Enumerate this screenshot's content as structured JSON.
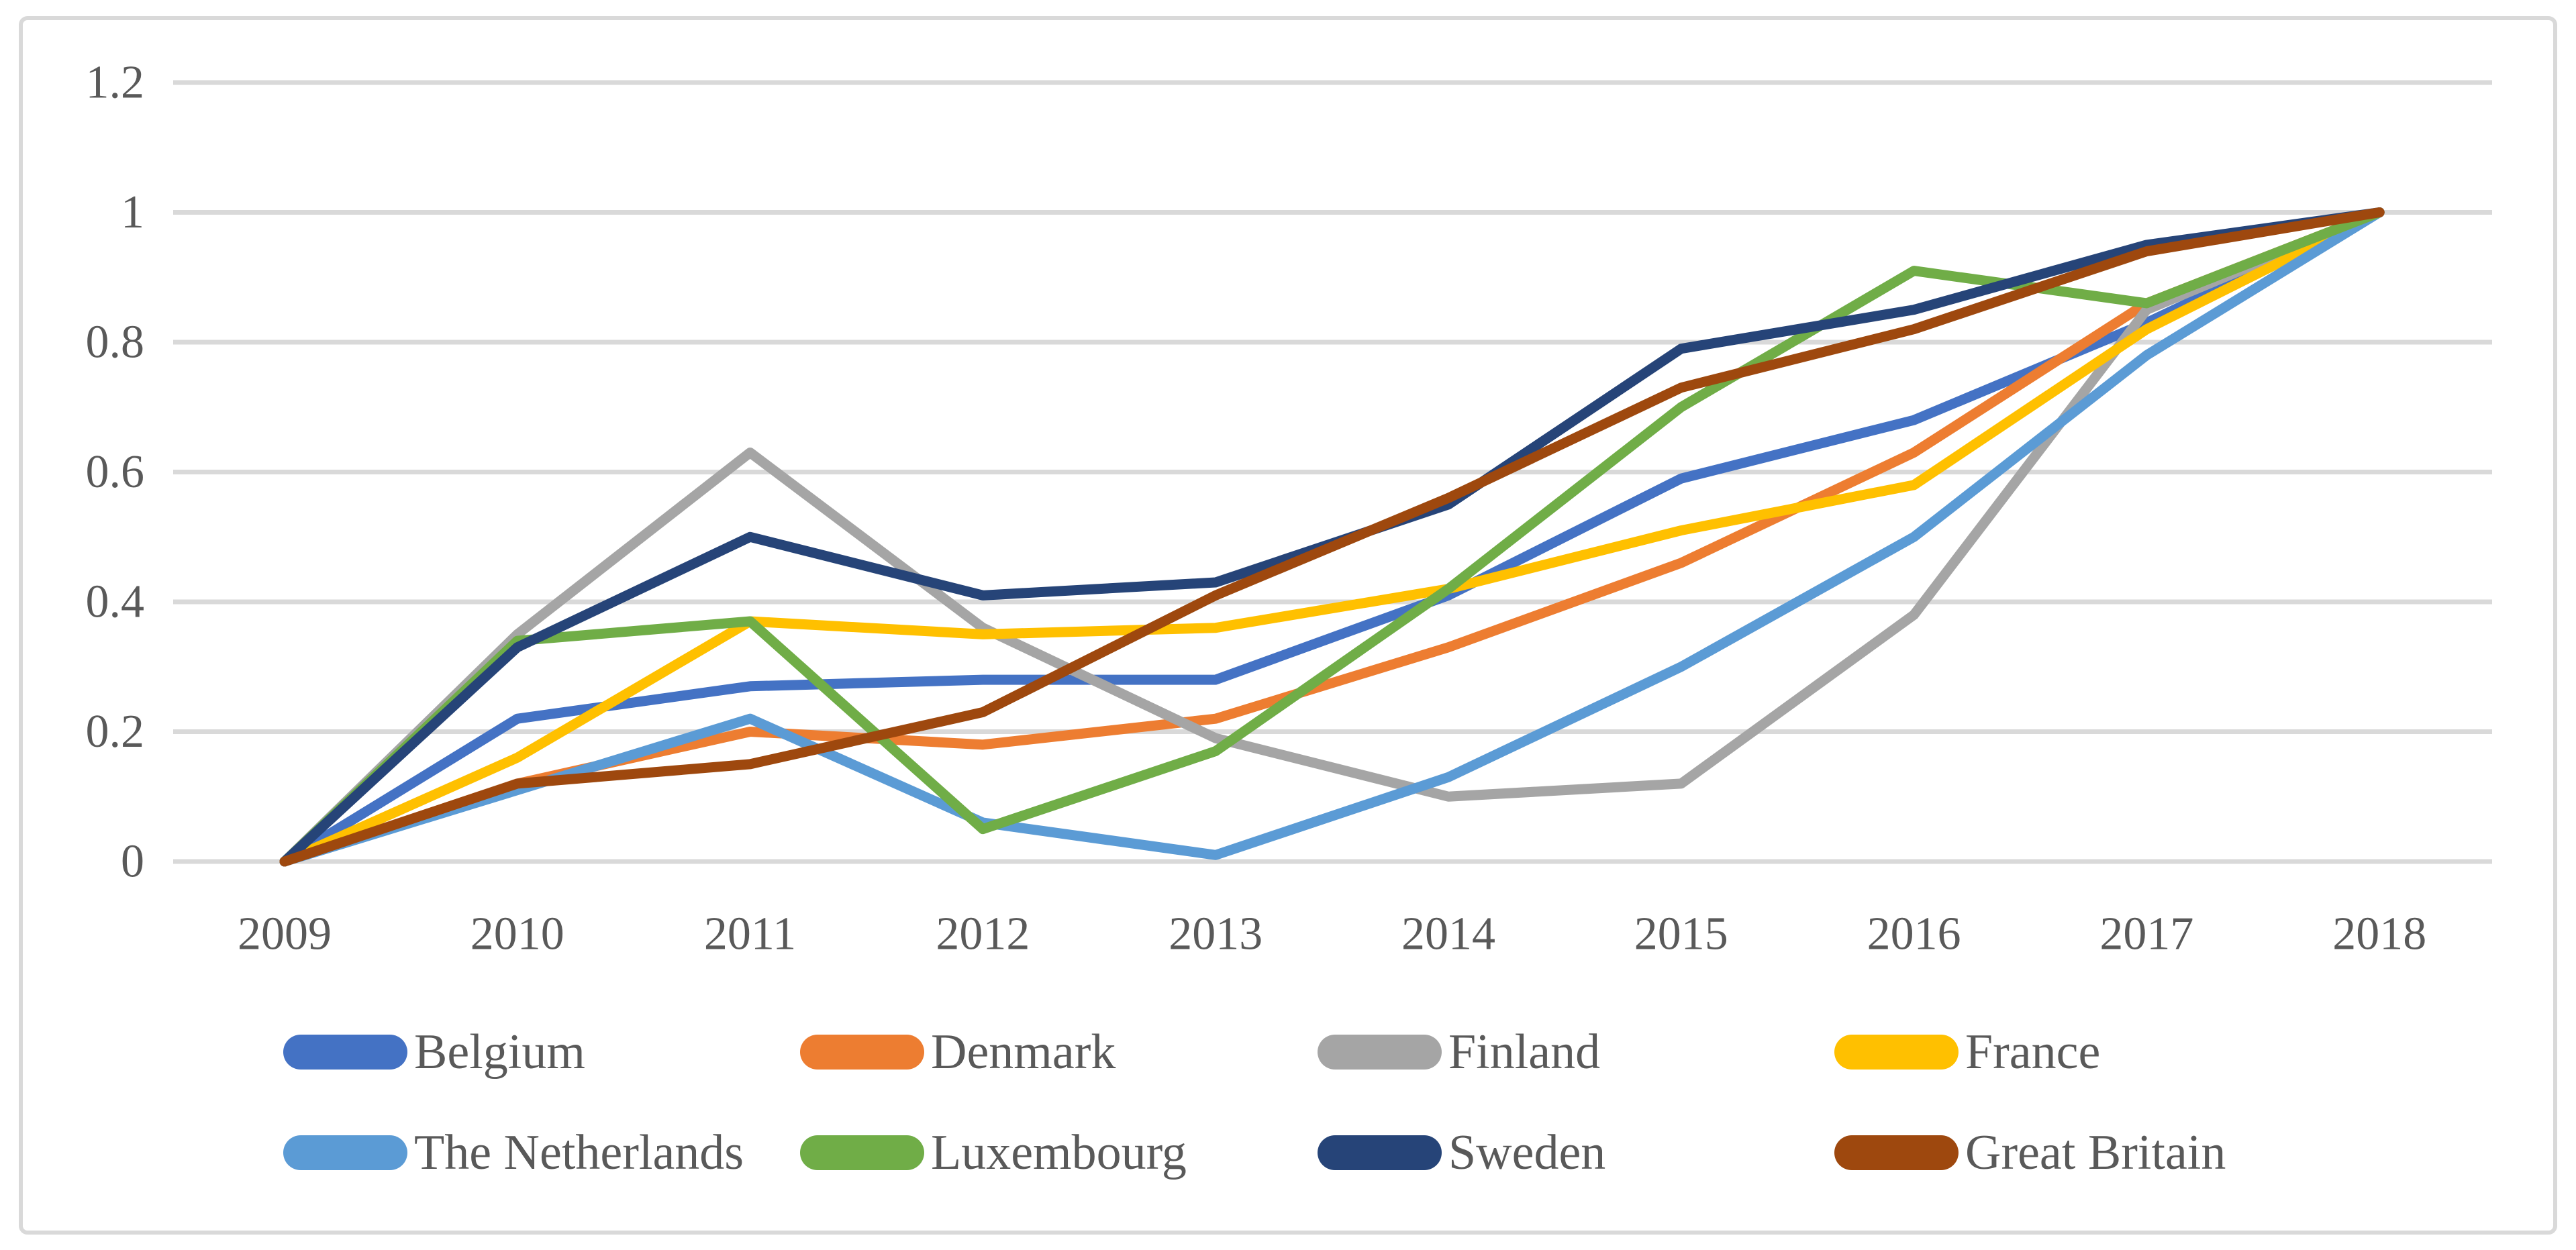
{
  "chart_data": {
    "type": "line",
    "title": "",
    "xlabel": "",
    "ylabel": "",
    "categories": [
      "2009",
      "2010",
      "2011",
      "2012",
      "2013",
      "2014",
      "2015",
      "2016",
      "2017",
      "2018"
    ],
    "y_ticks": [
      "0",
      "0.2",
      "0.4",
      "0.6",
      "0.8",
      "1",
      "1.2"
    ],
    "y_tick_values": [
      0,
      0.2,
      0.4,
      0.6,
      0.8,
      1,
      1.2
    ],
    "ylim": [
      0,
      1.2
    ],
    "grid": "horizontal",
    "gridline_color": "#D9D9D9",
    "axis_text_color": "#595959",
    "background_color": "#FFFFFF",
    "border_color": "#D9D9D9",
    "legend_position": "bottom",
    "series": [
      {
        "name": "Belgium",
        "color": "#4472C4",
        "values": [
          0,
          0.22,
          0.27,
          0.28,
          0.28,
          0.41,
          0.59,
          0.68,
          0.83,
          1
        ]
      },
      {
        "name": "Denmark",
        "color": "#ED7D31",
        "values": [
          0,
          0.12,
          0.2,
          0.18,
          0.22,
          0.33,
          0.46,
          0.63,
          0.86,
          1
        ]
      },
      {
        "name": "Finland",
        "color": "#A5A5A5",
        "values": [
          0,
          0.35,
          0.63,
          0.36,
          0.19,
          0.1,
          0.12,
          0.38,
          0.85,
          1
        ]
      },
      {
        "name": "France",
        "color": "#FFC000",
        "values": [
          0,
          0.16,
          0.37,
          0.35,
          0.36,
          0.42,
          0.51,
          0.58,
          0.82,
          1
        ]
      },
      {
        "name": "The Netherlands",
        "color": "#5B9BD5",
        "values": [
          0,
          0.11,
          0.22,
          0.06,
          0.01,
          0.13,
          0.3,
          0.5,
          0.78,
          1
        ]
      },
      {
        "name": "Luxembourg",
        "color": "#70AD47",
        "values": [
          0,
          0.34,
          0.37,
          0.05,
          0.17,
          0.42,
          0.7,
          0.91,
          0.86,
          1
        ]
      },
      {
        "name": "Sweden",
        "color": "#264478",
        "values": [
          0,
          0.33,
          0.5,
          0.41,
          0.43,
          0.55,
          0.79,
          0.85,
          0.95,
          1
        ]
      },
      {
        "name": "Great Britain",
        "color": "#9E480E",
        "values": [
          0,
          0.12,
          0.15,
          0.23,
          0.41,
          0.56,
          0.73,
          0.82,
          0.94,
          1
        ]
      }
    ],
    "legend_rows": [
      [
        "Belgium",
        "Denmark",
        "Finland",
        "France"
      ],
      [
        "The Netherlands",
        "Luxembourg",
        "Sweden",
        "Great Britain"
      ]
    ]
  }
}
